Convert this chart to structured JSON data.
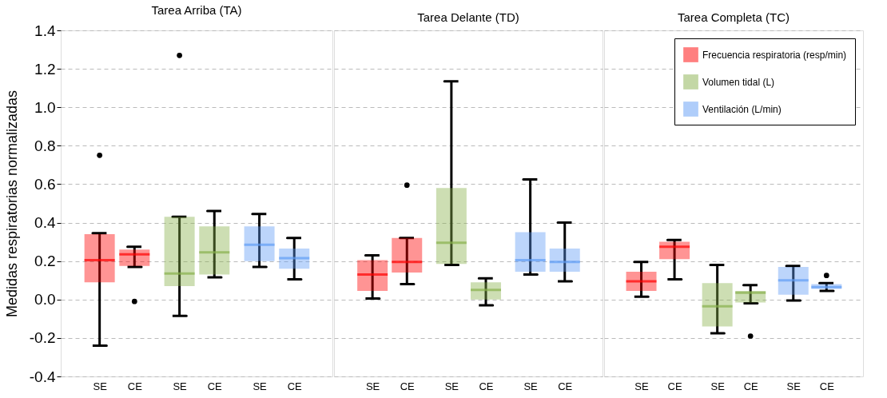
{
  "chart_data": [
    {
      "type": "box",
      "title": "Tarea Arriba (TA)",
      "ylabel": "Medidas respiratorias normalizadas",
      "categories": [
        "SE",
        "CE",
        "SE",
        "CE",
        "SE",
        "CE"
      ],
      "ylim": [
        -0.4,
        1.4
      ],
      "yticks": [
        -0.4,
        -0.2,
        {
          "value": 0,
          "label": "0.0"
        },
        0.2,
        0.4,
        0.6,
        0.8,
        {
          "value": 1,
          "label": "1.0"
        },
        1.2,
        1.4
      ],
      "grid": "y",
      "series": [
        {
          "color": "#ff0000",
          "boxes": [
            {
              "low": -0.24,
              "q1": 0.09,
              "median": 0.205,
              "q3": 0.34,
              "high": 0.345,
              "outliers": [
                0.75
              ]
            },
            {
              "low": 0.17,
              "q1": 0.175,
              "median": 0.235,
              "q3": 0.26,
              "high": 0.275,
              "outliers": [
                -0.01
              ]
            },
            null,
            null,
            null,
            null
          ]
        },
        {
          "color": "#88b04b",
          "boxes": [
            null,
            null,
            {
              "low": -0.085,
              "q1": 0.07,
              "median": 0.135,
              "q3": 0.43,
              "high": 0.43,
              "outliers": [
                1.27
              ]
            },
            {
              "low": 0.115,
              "q1": 0.13,
              "median": 0.245,
              "q3": 0.38,
              "high": 0.46
            },
            null,
            null
          ]
        },
        {
          "color": "#5f9cf5",
          "boxes": [
            null,
            null,
            null,
            null,
            {
              "low": 0.17,
              "q1": 0.2,
              "median": 0.285,
              "q3": 0.38,
              "high": 0.445
            },
            {
              "low": 0.105,
              "q1": 0.16,
              "median": 0.215,
              "q3": 0.265,
              "high": 0.32
            }
          ]
        }
      ]
    },
    {
      "type": "box",
      "title": "Tarea Delante (TD)",
      "categories": [
        "SE",
        "CE",
        "SE",
        "CE",
        "SE",
        "CE"
      ],
      "ylim": [
        -0.4,
        1.4
      ],
      "yticks": [
        -0.4,
        -0.2,
        0,
        0.2,
        0.4,
        0.6,
        0.8,
        1,
        1.2,
        1.4
      ],
      "grid": "y",
      "tick_labels": "x",
      "series": [
        {
          "color": "#ff0000",
          "boxes": [
            {
              "low": 0.005,
              "q1": 0.045,
              "median": 0.13,
              "q3": 0.205,
              "high": 0.23
            },
            {
              "low": 0.08,
              "q1": 0.14,
              "median": 0.195,
              "q3": 0.32,
              "high": 0.32,
              "outliers": [
                0.595
              ]
            },
            null,
            null,
            null,
            null
          ]
        },
        {
          "color": "#88b04b",
          "boxes": [
            null,
            null,
            {
              "low": 0.18,
              "q1": 0.185,
              "median": 0.295,
              "q3": 0.58,
              "high": 1.135
            },
            {
              "low": -0.03,
              "q1": 0.0,
              "median": 0.05,
              "q3": 0.09,
              "high": 0.11
            },
            null,
            null
          ]
        },
        {
          "color": "#5f9cf5",
          "boxes": [
            null,
            null,
            null,
            null,
            {
              "low": 0.13,
              "q1": 0.145,
              "median": 0.205,
              "q3": 0.35,
              "high": 0.625
            },
            {
              "low": 0.095,
              "q1": 0.145,
              "median": 0.195,
              "q3": 0.265,
              "high": 0.4
            }
          ]
        }
      ]
    },
    {
      "type": "box",
      "title": "Tarea Completa (TC)",
      "categories": [
        "SE",
        "CE",
        "SE",
        "CE",
        "SE",
        "CE"
      ],
      "ylim": [
        -0.4,
        1.4
      ],
      "yticks": [
        -0.4,
        -0.2,
        0,
        0.2,
        0.4,
        0.6,
        0.8,
        1,
        1.2,
        1.4
      ],
      "grid": "y",
      "legend": "top right",
      "tick_labels": "x",
      "series": [
        {
          "name": "Frecuencia respiratoria (resp/min)",
          "color": "#ff0000",
          "boxes": [
            {
              "low": 0.015,
              "q1": 0.045,
              "median": 0.095,
              "q3": 0.145,
              "high": 0.195
            },
            {
              "low": 0.105,
              "q1": 0.21,
              "median": 0.275,
              "q3": 0.3,
              "high": 0.31
            },
            null,
            null,
            null,
            null
          ]
        },
        {
          "name": "Volumen tidal (L)",
          "color": "#88b04b",
          "boxes": [
            null,
            null,
            {
              "low": -0.175,
              "q1": -0.14,
              "median": -0.035,
              "q3": 0.085,
              "high": 0.18
            },
            {
              "low": -0.02,
              "q1": -0.015,
              "median": 0.035,
              "q3": 0.045,
              "high": 0.075,
              "outliers": [
                -0.19
              ]
            },
            null,
            null
          ]
        },
        {
          "name": "Ventilación (L/min)",
          "color": "#5f9cf5",
          "boxes": [
            null,
            null,
            null,
            null,
            {
              "low": -0.005,
              "q1": 0.025,
              "median": 0.1,
              "q3": 0.17,
              "high": 0.175
            },
            {
              "low": 0.045,
              "q1": 0.055,
              "median": 0.065,
              "q3": 0.08,
              "high": 0.085,
              "outliers": [
                0.125
              ]
            }
          ]
        }
      ]
    }
  ]
}
